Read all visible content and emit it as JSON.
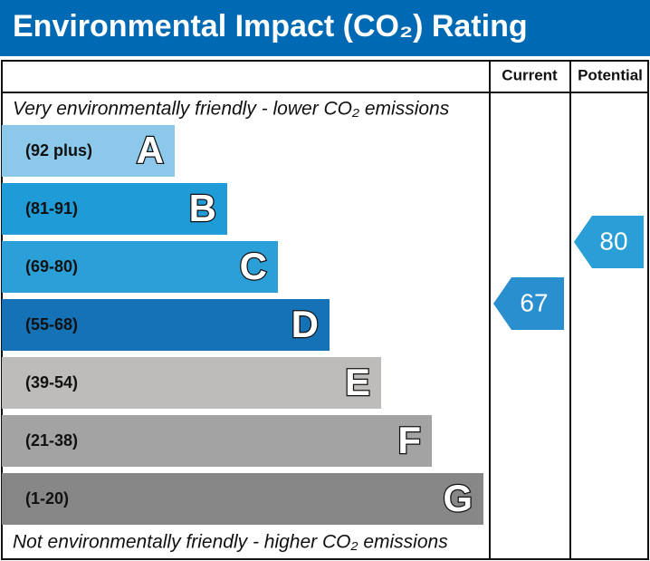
{
  "title": "Environmental Impact (CO₂) Rating",
  "columns": [
    "Current",
    "Potential"
  ],
  "top_note": "Very environmentally friendly - lower CO₂ emissions",
  "bottom_note": "Not environmentally friendly - higher CO₂ emissions",
  "bands": [
    {
      "range": "(92 plus)",
      "letter": "A",
      "color": "#8cc8e9"
    },
    {
      "range": "(81-91)",
      "letter": "B",
      "color": "#1f9bd7"
    },
    {
      "range": "(69-80)",
      "letter": "C",
      "color": "#2ba0d8"
    },
    {
      "range": "(55-68)",
      "letter": "D",
      "color": "#1672b6"
    },
    {
      "range": "(39-54)",
      "letter": "E",
      "color": "#bdbcba"
    },
    {
      "range": "(21-38)",
      "letter": "F",
      "color": "#a3a3a3"
    },
    {
      "range": "(1-20)",
      "letter": "G",
      "color": "#878787"
    }
  ],
  "current": 67,
  "potential": 80
}
